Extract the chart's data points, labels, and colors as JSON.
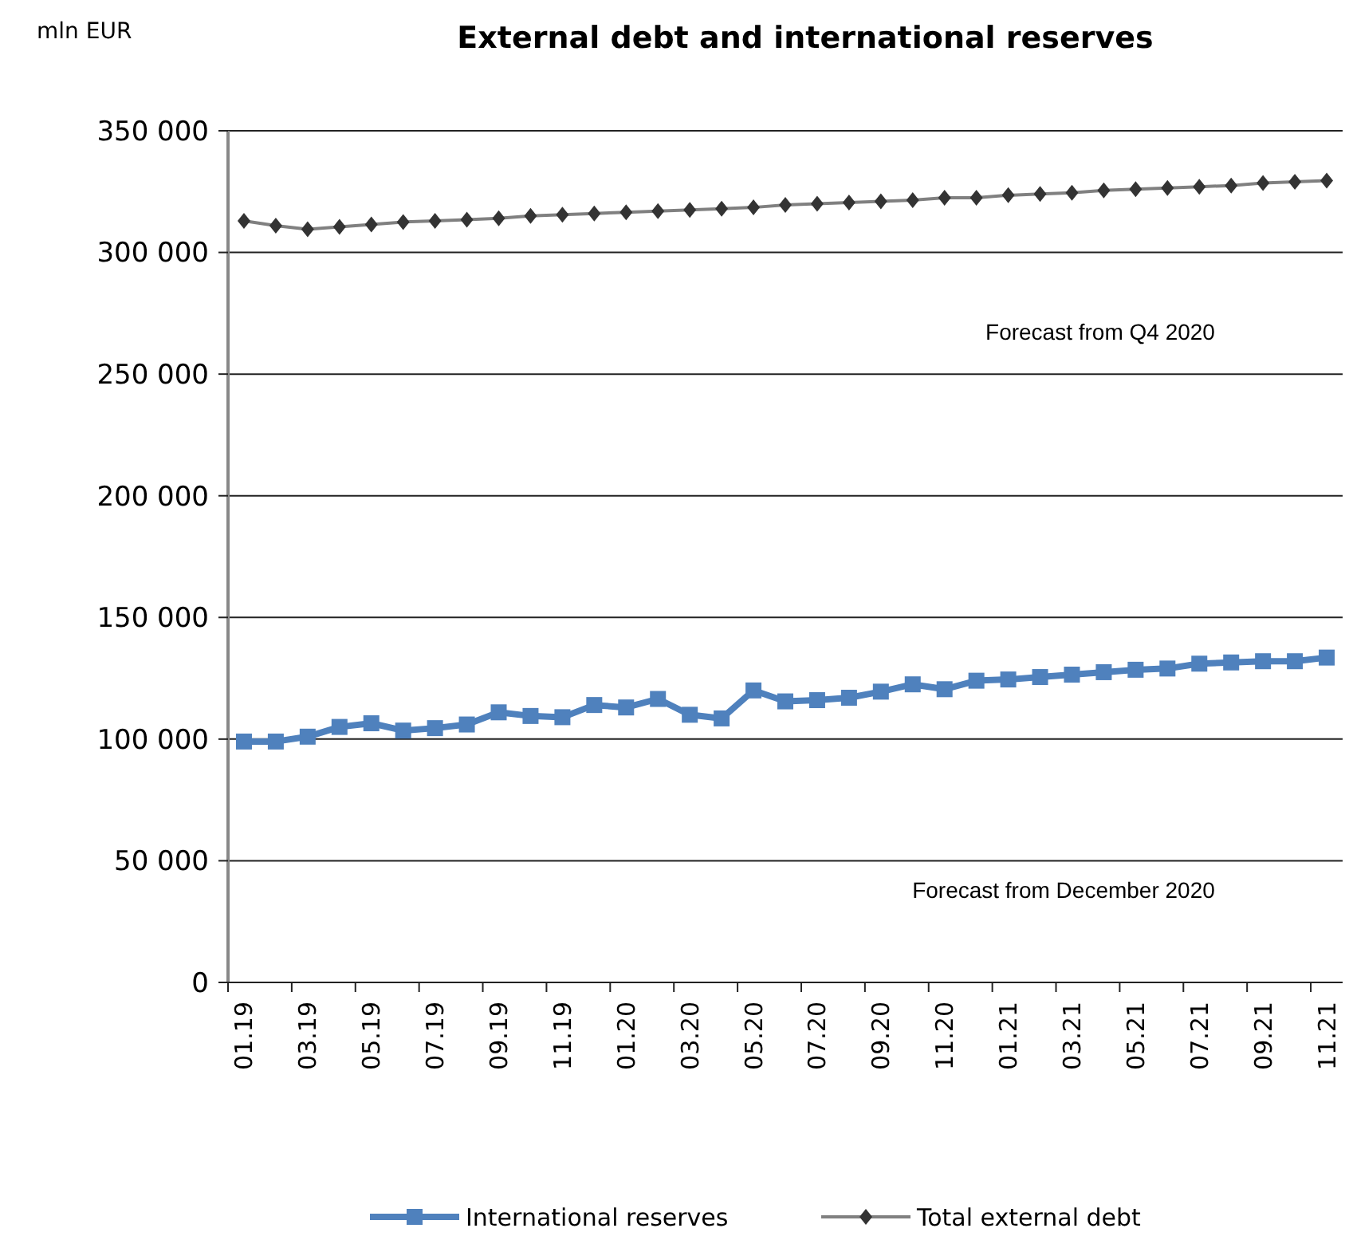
{
  "chart_data": {
    "type": "line",
    "title": "External debt and international reserves",
    "ylabel": "mln EUR",
    "categories": [
      "01.19",
      null,
      "03.19",
      null,
      "05.19",
      null,
      "07.19",
      null,
      "09.19",
      null,
      "11.19",
      null,
      "01.20",
      null,
      "03.20",
      null,
      "05.20",
      null,
      "07.20",
      null,
      "09.20",
      null,
      "11.20",
      null,
      "01.21",
      null,
      "03.21",
      null,
      "05.21",
      null,
      "07.21",
      null,
      "09.21",
      null,
      "11.21"
    ],
    "series": [
      {
        "name": "International reserves",
        "color": "#4f81bd",
        "marker": "square",
        "values": [
          99000,
          99000,
          101000,
          105000,
          106500,
          103500,
          104500,
          106000,
          111000,
          109500,
          109000,
          114000,
          113000,
          116500,
          110000,
          108500,
          120000,
          115500,
          116000,
          117000,
          119500,
          122500,
          120500,
          124000,
          124500,
          125500,
          126500,
          127500,
          128500,
          129000,
          131000,
          131500,
          132000,
          132000,
          133500
        ]
      },
      {
        "name": "Total external debt",
        "color": "#333333",
        "marker": "diamond",
        "values": [
          313000,
          311000,
          309500,
          310500,
          311500,
          312500,
          313000,
          313500,
          314000,
          315000,
          315500,
          316000,
          316500,
          317000,
          317500,
          318000,
          318500,
          319500,
          320000,
          320500,
          321000,
          321500,
          322500,
          322500,
          323500,
          324000,
          324500,
          325500,
          326000,
          326500,
          327000,
          327500,
          328500,
          329000,
          329500
        ]
      }
    ],
    "ylim": [
      0,
      350000
    ],
    "yticks": [
      {
        "value": 0,
        "label": "0"
      },
      {
        "value": 50000,
        "label": "50 000"
      },
      {
        "value": 100000,
        "label": "100 000"
      },
      {
        "value": 150000,
        "label": "150 000"
      },
      {
        "value": 200000,
        "label": "200 000"
      },
      {
        "value": 250000,
        "label": "250 000"
      },
      {
        "value": 300000,
        "label": "300 000"
      },
      {
        "value": 350000,
        "label": "350 000"
      }
    ],
    "grid": "y",
    "legend": "bottom",
    "annotations": [
      "Forecast from Q4 2020",
      "Forecast from December 2020"
    ]
  }
}
